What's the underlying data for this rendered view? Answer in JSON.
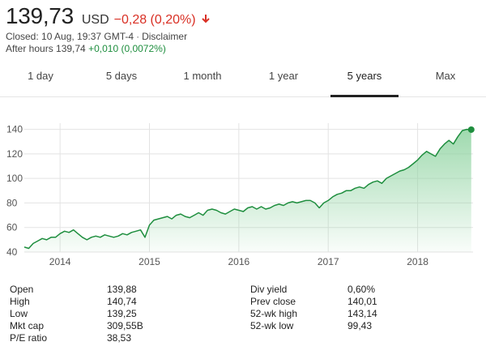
{
  "quote": {
    "price": "139,73",
    "currency": "USD",
    "change": "−0,28 (0,20%)",
    "closed_text": "Closed: 10 Aug, 19:37 GMT-4",
    "disclaimer": "Disclaimer",
    "after_hours_label": "After hours 139,74",
    "after_hours_change": "+0,010 (0,0072%)"
  },
  "tabs": [
    {
      "label": "1 day",
      "active": false
    },
    {
      "label": "5 days",
      "active": false
    },
    {
      "label": "1 month",
      "active": false
    },
    {
      "label": "1 year",
      "active": false
    },
    {
      "label": "5 years",
      "active": true
    },
    {
      "label": "Max",
      "active": false
    }
  ],
  "colors": {
    "negative": "#d93025",
    "positive": "#1e8e3e",
    "line": "#1e8e3e",
    "fill": "#8ed3a0"
  },
  "chart_data": {
    "type": "area",
    "ylim": [
      40,
      145
    ],
    "yticks": [
      40,
      60,
      80,
      100,
      120,
      140
    ],
    "ytick_labels": [
      "40",
      "60",
      "80",
      "100",
      "120",
      "140"
    ],
    "xlim": [
      2013.6,
      2018.62
    ],
    "xticks": [
      2014,
      2015,
      2016,
      2017,
      2018
    ],
    "xtick_labels": [
      "2014",
      "2015",
      "2016",
      "2017",
      "2018"
    ],
    "grid": true,
    "series": [
      {
        "x": [
          2013.6,
          2013.65,
          2013.7,
          2013.75,
          2013.8,
          2013.85,
          2013.9,
          2013.95,
          2014.0,
          2014.05,
          2014.1,
          2014.15,
          2014.2,
          2014.25,
          2014.3,
          2014.35,
          2014.4,
          2014.45,
          2014.5,
          2014.55,
          2014.6,
          2014.65,
          2014.7,
          2014.75,
          2014.8,
          2014.85,
          2014.9,
          2014.95,
          2015.0,
          2015.05,
          2015.1,
          2015.15,
          2015.2,
          2015.25,
          2015.3,
          2015.35,
          2015.4,
          2015.45,
          2015.5,
          2015.55,
          2015.6,
          2015.65,
          2015.7,
          2015.75,
          2015.8,
          2015.85,
          2015.9,
          2015.95,
          2016.0,
          2016.05,
          2016.1,
          2016.15,
          2016.2,
          2016.25,
          2016.3,
          2016.35,
          2016.4,
          2016.45,
          2016.5,
          2016.55,
          2016.6,
          2016.65,
          2016.7,
          2016.75,
          2016.8,
          2016.85,
          2016.9,
          2016.95,
          2017.0,
          2017.05,
          2017.1,
          2017.15,
          2017.2,
          2017.25,
          2017.3,
          2017.35,
          2017.4,
          2017.45,
          2017.5,
          2017.55,
          2017.6,
          2017.65,
          2017.7,
          2017.75,
          2017.8,
          2017.85,
          2017.9,
          2017.95,
          2018.0,
          2018.05,
          2018.1,
          2018.15,
          2018.2,
          2018.25,
          2018.3,
          2018.35,
          2018.4,
          2018.45,
          2018.5,
          2018.55,
          2018.6
        ],
        "values": [
          44,
          43,
          47,
          49,
          51,
          50,
          52,
          52,
          55,
          57,
          56,
          58,
          55,
          52,
          50,
          52,
          53,
          52,
          54,
          53,
          52,
          53,
          55,
          54,
          56,
          57,
          58,
          52,
          62,
          66,
          67,
          68,
          69,
          67,
          70,
          71,
          69,
          68,
          70,
          72,
          70,
          74,
          75,
          74,
          72,
          71,
          73,
          75,
          74,
          73,
          76,
          77,
          75,
          77,
          75,
          76,
          78,
          79,
          78,
          80,
          81,
          80,
          81,
          82,
          82,
          80,
          76,
          80,
          82,
          85,
          87,
          88,
          90,
          90,
          92,
          93,
          92,
          95,
          97,
          98,
          96,
          100,
          102,
          104,
          106,
          107,
          109,
          112,
          115,
          119,
          122,
          120,
          118,
          124,
          128,
          131,
          128,
          134,
          139,
          140,
          139.73
        ]
      }
    ]
  },
  "stats": {
    "left": [
      {
        "label": "Open",
        "value": "139,88"
      },
      {
        "label": "High",
        "value": "140,74"
      },
      {
        "label": "Low",
        "value": "139,25"
      },
      {
        "label": "Mkt cap",
        "value": "309,55B"
      },
      {
        "label": "P/E ratio",
        "value": "38,53"
      }
    ],
    "right": [
      {
        "label": "Div yield",
        "value": "0,60%"
      },
      {
        "label": "Prev close",
        "value": "140,01"
      },
      {
        "label": "52-wk high",
        "value": "143,14"
      },
      {
        "label": "52-wk low",
        "value": "99,43"
      }
    ]
  }
}
